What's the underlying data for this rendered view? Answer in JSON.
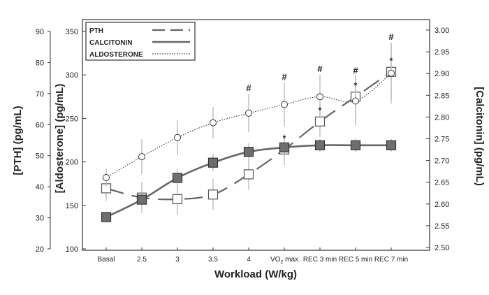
{
  "chart_data": {
    "type": "line",
    "xlabel": "Workload (W/kg)",
    "categories": [
      "Basal",
      "2.5",
      "3",
      "3.5",
      "4",
      "VO2 max",
      "REC 3 min",
      "REC 5 min",
      "REC 7 min"
    ],
    "axes": {
      "pth": {
        "label": "[PTH] (pg/mL)",
        "ylim": [
          20,
          90
        ],
        "ticks": [
          20,
          30,
          40,
          50,
          60,
          70,
          80,
          90
        ]
      },
      "aldosterone": {
        "label": "[Aldosterone] (pg/mL)",
        "ylim": [
          100,
          350
        ],
        "ticks": [
          100,
          150,
          200,
          250,
          300,
          350
        ]
      },
      "calcitonin": {
        "label": "[Calcitonin] (pg/mL)",
        "ylim": [
          2.5,
          3.0
        ],
        "ticks": [
          "2.50",
          "2.55",
          "2.60",
          "2.65",
          "2.70",
          "2.75",
          "2.80",
          "2.85",
          "2.90",
          "2.95",
          "3.00"
        ]
      }
    },
    "series": [
      {
        "name": "PTH",
        "axis": "pth",
        "style": "dashed",
        "marker": "open-square",
        "color": "#666666",
        "values": [
          39.5,
          36.5,
          36,
          37.5,
          44,
          52,
          61,
          69,
          77
        ],
        "err": [
          4,
          5,
          5,
          5,
          5,
          5,
          5,
          7,
          9
        ]
      },
      {
        "name": "CALCITONIN",
        "axis": "calcitonin",
        "style": "solid",
        "marker": "filled-square",
        "color": "#666666",
        "values": [
          2.57,
          2.61,
          2.66,
          2.695,
          2.72,
          2.73,
          2.735,
          2.735,
          2.735
        ],
        "err": [
          0.012,
          0.015,
          0.02,
          0.02,
          0.02,
          0.02,
          0.015,
          0.015,
          0.015
        ]
      },
      {
        "name": "ALDOSTERONE",
        "axis": "aldosterone",
        "style": "dotted",
        "marker": "open-circle",
        "color": "#444444",
        "values": [
          182,
          206,
          228,
          245,
          256,
          266,
          275,
          270,
          302
        ],
        "err": [
          10,
          20,
          20,
          18,
          22,
          25,
          25,
          28,
          35
        ]
      }
    ],
    "annotations": [
      {
        "index": 4,
        "marks": [
          "#"
        ]
      },
      {
        "index": 5,
        "marks": [
          "#",
          "*"
        ]
      },
      {
        "index": 6,
        "marks": [
          "#",
          "*"
        ]
      },
      {
        "index": 7,
        "marks": [
          "#",
          "*"
        ]
      },
      {
        "index": 8,
        "marks": [
          "#",
          "*"
        ]
      }
    ],
    "legend": {
      "placement": "top-left",
      "entries": [
        "PTH",
        "CALCITONIN",
        "ALDOSTERONE"
      ]
    }
  }
}
